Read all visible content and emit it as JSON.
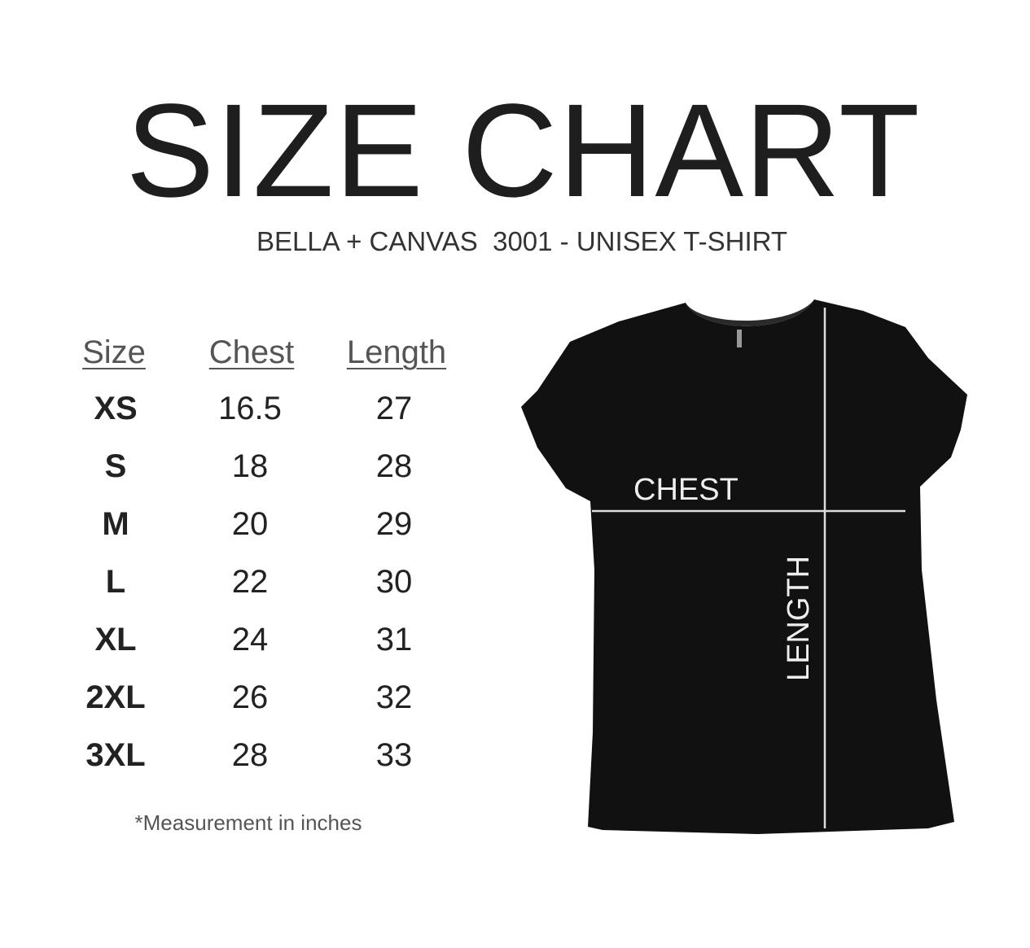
{
  "title": "SIZE CHART",
  "subtitle": "BELLA + CANVAS  3001 - UNISEX T-SHIRT",
  "table": {
    "headers": [
      "Size",
      "Chest",
      "Length"
    ],
    "rows": [
      [
        "XS",
        "16.5",
        "27"
      ],
      [
        "S",
        "18",
        "28"
      ],
      [
        "M",
        "20",
        "29"
      ],
      [
        "L",
        "22",
        "30"
      ],
      [
        "XL",
        "24",
        "31"
      ],
      [
        "2XL",
        "26",
        "32"
      ],
      [
        "3XL",
        "28",
        "33"
      ]
    ]
  },
  "footnote": "*Measurement in inches",
  "diagram": {
    "chest_label": "CHEST",
    "length_label": "LENGTH",
    "shirt_color": "#111111",
    "line_color": "#dddddd"
  }
}
